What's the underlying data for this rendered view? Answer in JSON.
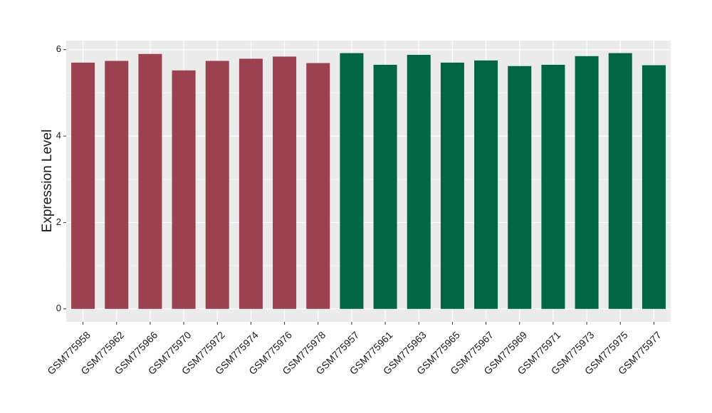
{
  "chart_data": {
    "type": "bar",
    "y_label": "Expression Level",
    "categories": [
      "GSM775958",
      "GSM775962",
      "GSM775966",
      "GSM775970",
      "GSM775972",
      "GSM775974",
      "GSM775976",
      "GSM775978",
      "GSM775957",
      "GSM775961",
      "GSM775963",
      "GSM775965",
      "GSM775967",
      "GSM775969",
      "GSM775971",
      "GSM775973",
      "GSM775975",
      "GSM775977"
    ],
    "values": [
      5.7,
      5.74,
      5.9,
      5.52,
      5.74,
      5.79,
      5.84,
      5.69,
      5.92,
      5.65,
      5.88,
      5.7,
      5.75,
      5.62,
      5.65,
      5.85,
      5.92,
      5.64
    ],
    "colors": [
      "#9b4150",
      "#9b4150",
      "#9b4150",
      "#9b4150",
      "#9b4150",
      "#9b4150",
      "#9b4150",
      "#9b4150",
      "#006643",
      "#006643",
      "#006643",
      "#006643",
      "#006643",
      "#006643",
      "#006643",
      "#006643",
      "#006643",
      "#006643"
    ],
    "ylim": [
      -0.3,
      6.21
    ],
    "yticks": [
      0,
      2,
      4,
      6
    ],
    "minor_yticks": [
      1,
      3,
      5
    ],
    "grid": true
  }
}
